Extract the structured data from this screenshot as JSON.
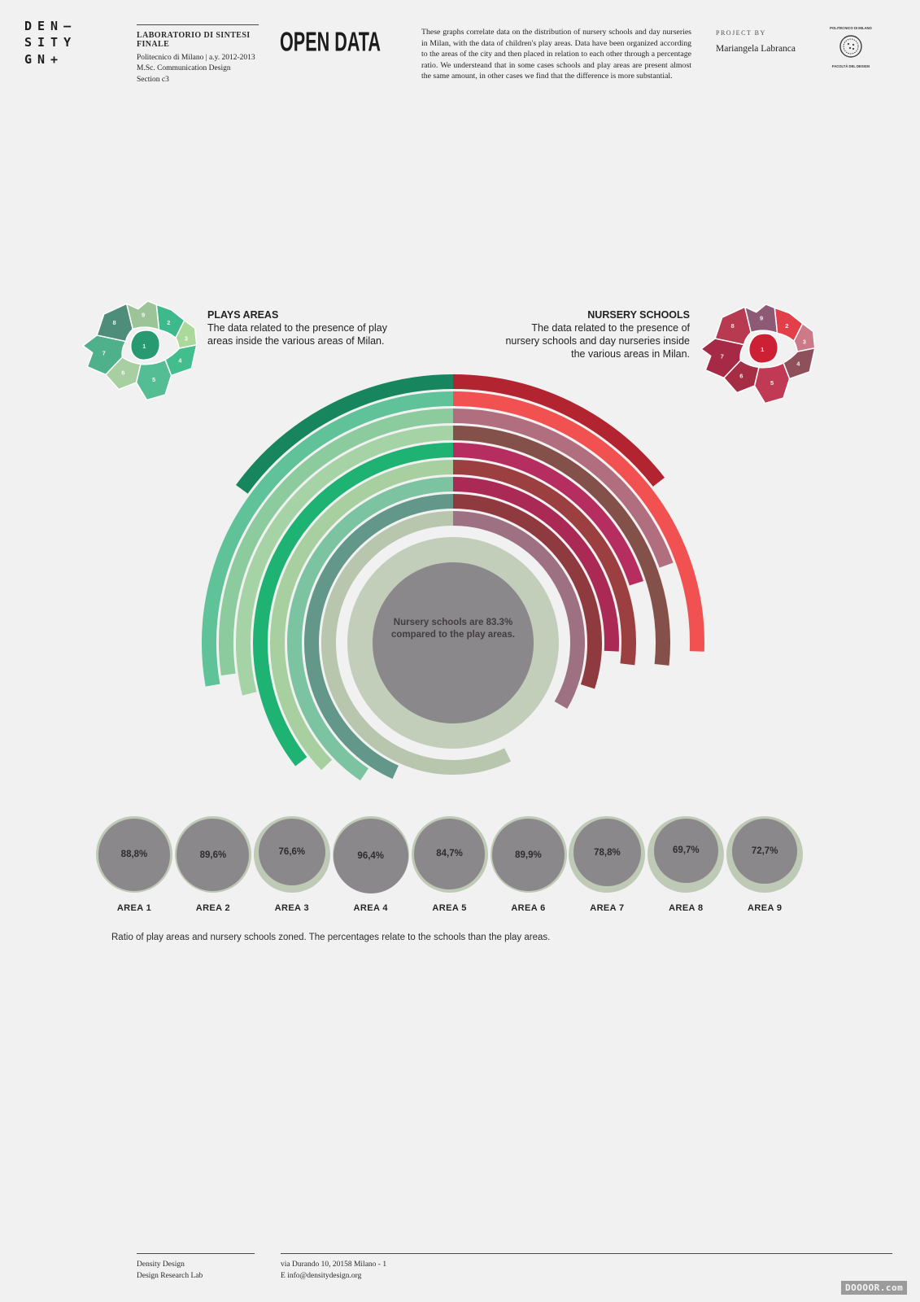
{
  "brand": {
    "line1": "DEN–",
    "line2": "SITY",
    "line3": "GN+"
  },
  "header": {
    "lab_title": "LABORATORIO DI SINTESI FINALE",
    "lab_line1": "Politecnico di Milano | a.y. 2012-2013",
    "lab_line2": "M.Sc. Communication Design",
    "lab_line3": "Section c3",
    "title": "OPEN DATA",
    "description": "These graphs correlate data on the distribution of nursery schools and day nurseries in Milan, with the data of children's play areas. Data have been organized according to the areas of the city and then placed in relation to each other through a percentage ratio. We understeand that in some cases schools and play areas are present almost the same amount, in other cases we find that the difference is more substantial.",
    "project_by_label": "PROJECT BY",
    "project_by_name": "Mariangela Labranca",
    "seal_top": "POLITECNICO DI MILANO",
    "seal_bottom": "FACOLTÀ DEL DESIGN"
  },
  "legend_left": {
    "title": "PLAYS AREAS",
    "text": "The data related to the presence of play areas inside the various areas of Milan."
  },
  "legend_right": {
    "title": "NURSERY SCHOOLS",
    "text": "The data related to the presence of nursery schools and day nurseries inside the various areas in Milan."
  },
  "maps": {
    "district_numbers": [
      "1",
      "2",
      "3",
      "4",
      "5",
      "6",
      "7",
      "8",
      "9"
    ],
    "left_colors": [
      "#279a71",
      "#3eb98c",
      "#abd89b",
      "#42bd8d",
      "#55bd93",
      "#a8cfa2",
      "#4fb18c",
      "#4e8d79",
      "#9cc498"
    ],
    "right_colors": [
      "#cc2134",
      "#e23f4a",
      "#cc7a88",
      "#8e505a",
      "#c03a56",
      "#a52e45",
      "#a62a45",
      "#b73a50",
      "#8c5a74"
    ]
  },
  "chart_data": [
    {
      "type": "radial-bar",
      "title": "Distribution of play areas (green, left) vs nursery schools (red, right) in Milan",
      "center_note": "Nursery schools are 83.3% compared to the play areas.",
      "left_series": "PLAYS AREAS",
      "right_series": "NURSERY SCHOOLS",
      "rings": [
        {
          "ring": 1,
          "green_sweep_deg": 54,
          "red_sweep_deg": 52,
          "green_color": "#17855e",
          "red_color": "#b32431"
        },
        {
          "ring": 2,
          "green_sweep_deg": 100,
          "red_sweep_deg": 92,
          "green_color": "#5fc299",
          "red_color": "#f15251"
        },
        {
          "ring": 3,
          "green_sweep_deg": 98,
          "red_sweep_deg": 70,
          "green_color": "#8ccb9e",
          "red_color": "#b06e7e"
        },
        {
          "ring": 4,
          "green_sweep_deg": 104,
          "red_sweep_deg": 96,
          "green_color": "#a6d3a6",
          "red_color": "#84504a"
        },
        {
          "ring": 5,
          "green_sweep_deg": 128,
          "red_sweep_deg": 72,
          "green_color": "#1eb273",
          "red_color": "#b52e5f"
        },
        {
          "ring": 6,
          "green_sweep_deg": 134,
          "red_sweep_deg": 97,
          "green_color": "#a8cf9f",
          "red_color": "#9c3f41"
        },
        {
          "ring": 7,
          "green_sweep_deg": 146,
          "red_sweep_deg": 93,
          "green_color": "#7cc4a1",
          "red_color": "#ab2a55"
        },
        {
          "ring": 8,
          "green_sweep_deg": 156,
          "red_sweep_deg": 108,
          "green_color": "#63978a",
          "red_color": "#8f3a3f"
        },
        {
          "ring": 9,
          "green_sweep_deg": 206,
          "red_sweep_deg": 120,
          "green_color": "#b7c6ad",
          "red_color": "#9d7181"
        }
      ],
      "center_colors": {
        "inner_gray": "#8b888c",
        "sage_ring": "#c3ceba"
      }
    },
    {
      "type": "circle-ratio",
      "categories": [
        "AREA 1",
        "AREA 2",
        "AREA 3",
        "AREA 4",
        "AREA 5",
        "AREA 6",
        "AREA 7",
        "AREA 8",
        "AREA 9"
      ],
      "values": [
        88.8,
        89.6,
        76.6,
        96.4,
        84.7,
        89.9,
        78.8,
        69.7,
        72.7
      ],
      "value_labels": [
        "88,8%",
        "89,6%",
        "76,6%",
        "96,4%",
        "84,7%",
        "89,9%",
        "78,8%",
        "69,7%",
        "72,7%"
      ],
      "outer_color": "#bec9b6",
      "inner_color": "#8b888c"
    }
  ],
  "caption": "Ratio of play areas and nursery schools zoned. The percentages relate to the schools than the play areas.",
  "footer": {
    "left_line1": "Density Design",
    "left_line2": "Design Research Lab",
    "right_line1": "via Durando 10, 20158 Milano - 1",
    "right_line2": "E info@densitydesign.org"
  },
  "watermark": "DOOOOR.com"
}
